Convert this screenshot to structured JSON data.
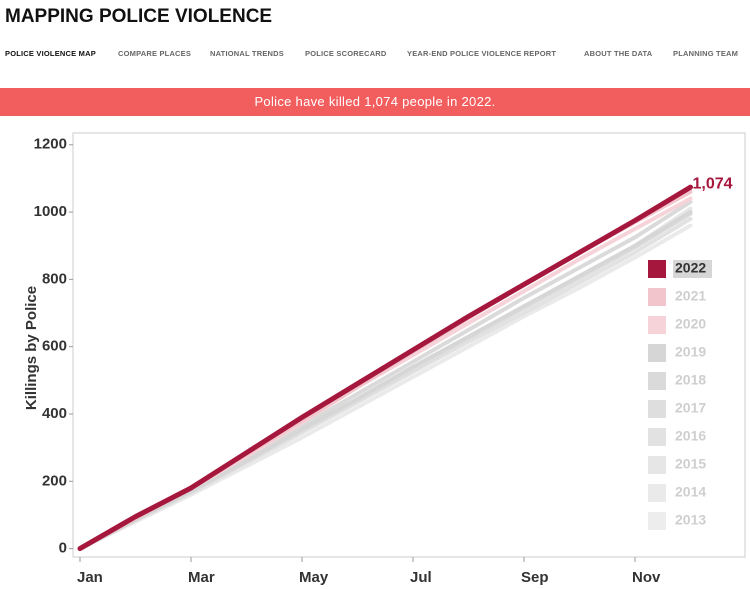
{
  "header": {
    "title": "MAPPING POLICE VIOLENCE",
    "nav": [
      "POLICE VIOLENCE MAP",
      "COMPARE PLACES",
      "NATIONAL TRENDS",
      "POLICE SCORECARD",
      "YEAR-END POLICE VIOLENCE REPORT",
      "ABOUT THE DATA",
      "PLANNING TEAM"
    ]
  },
  "banner": "Police have killed 1,074 people in 2022.",
  "chart_data": {
    "type": "line",
    "y_label": "Killings by Police",
    "categories": [
      "Jan",
      null,
      "Mar",
      null,
      "May",
      null,
      "Jul",
      null,
      "Sep",
      null,
      "Nov",
      null
    ],
    "ylim": [
      -25,
      1235
    ],
    "yticks": [
      0,
      200,
      400,
      600,
      800,
      1000,
      1200
    ],
    "series": [
      {
        "name": "2022",
        "color": "#a6173d",
        "values": [
          0,
          95,
          180,
          285,
          390,
          490,
          590,
          690,
          785,
          880,
          975,
          1074
        ],
        "value_labels": [
          null,
          null,
          null,
          null,
          null,
          null,
          null,
          null,
          null,
          null,
          null,
          "1,074"
        ]
      },
      {
        "name": "2021",
        "color": "#f2c4cb",
        "values": [
          0,
          90,
          180,
          280,
          380,
          480,
          585,
          685,
          785,
          880,
          970,
          1060
        ]
      },
      {
        "name": "2020",
        "color": "#f5d3d8",
        "values": [
          0,
          92,
          178,
          275,
          375,
          480,
          575,
          670,
          765,
          860,
          950,
          1040
        ]
      },
      {
        "name": "2019",
        "color": "#d6d6d6",
        "values": [
          0,
          85,
          170,
          260,
          355,
          445,
          540,
          630,
          720,
          810,
          900,
          1000
        ]
      },
      {
        "name": "2018",
        "color": "#dadada",
        "values": [
          0,
          90,
          175,
          270,
          365,
          460,
          555,
          650,
          745,
          835,
          925,
          1030
        ]
      },
      {
        "name": "2017",
        "color": "#dedede",
        "values": [
          0,
          88,
          170,
          262,
          350,
          440,
          530,
          625,
          715,
          805,
          895,
          995
        ]
      },
      {
        "name": "2016",
        "color": "#e2e2e2",
        "values": [
          0,
          85,
          165,
          255,
          345,
          435,
          525,
          615,
          700,
          790,
          880,
          980
        ]
      },
      {
        "name": "2015",
        "color": "#e6e6e6",
        "values": [
          0,
          88,
          172,
          262,
          352,
          442,
          535,
          628,
          718,
          808,
          900,
          1010
        ]
      },
      {
        "name": "2014",
        "color": "#eaeaea",
        "values": [
          0,
          80,
          160,
          245,
          330,
          420,
          510,
          600,
          690,
          775,
          865,
          960
        ]
      },
      {
        "name": "2013",
        "color": "#ededed",
        "values": [
          0,
          85,
          168,
          258,
          348,
          438,
          528,
          620,
          710,
          800,
          895,
          995
        ]
      }
    ]
  }
}
